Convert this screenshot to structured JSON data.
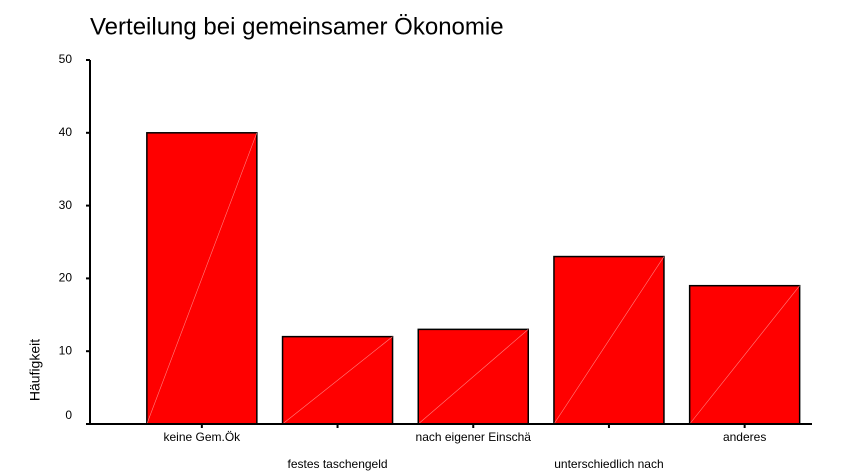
{
  "chart_data": {
    "type": "bar",
    "title": "Verteilung bei gemeinsamer Ökonomie",
    "y_label": "Häufigkeit",
    "categories": [
      "keine Gem.Ök",
      "festes taschengeld",
      "nach eigener Einschä",
      "unterschiedlich nach",
      "anderes"
    ],
    "values": [
      40,
      12,
      13,
      23,
      19
    ],
    "color": "#ff0000",
    "ylim": [
      0,
      50
    ],
    "yticks": [
      0,
      10,
      20,
      30,
      40,
      50
    ],
    "grid": false
  }
}
